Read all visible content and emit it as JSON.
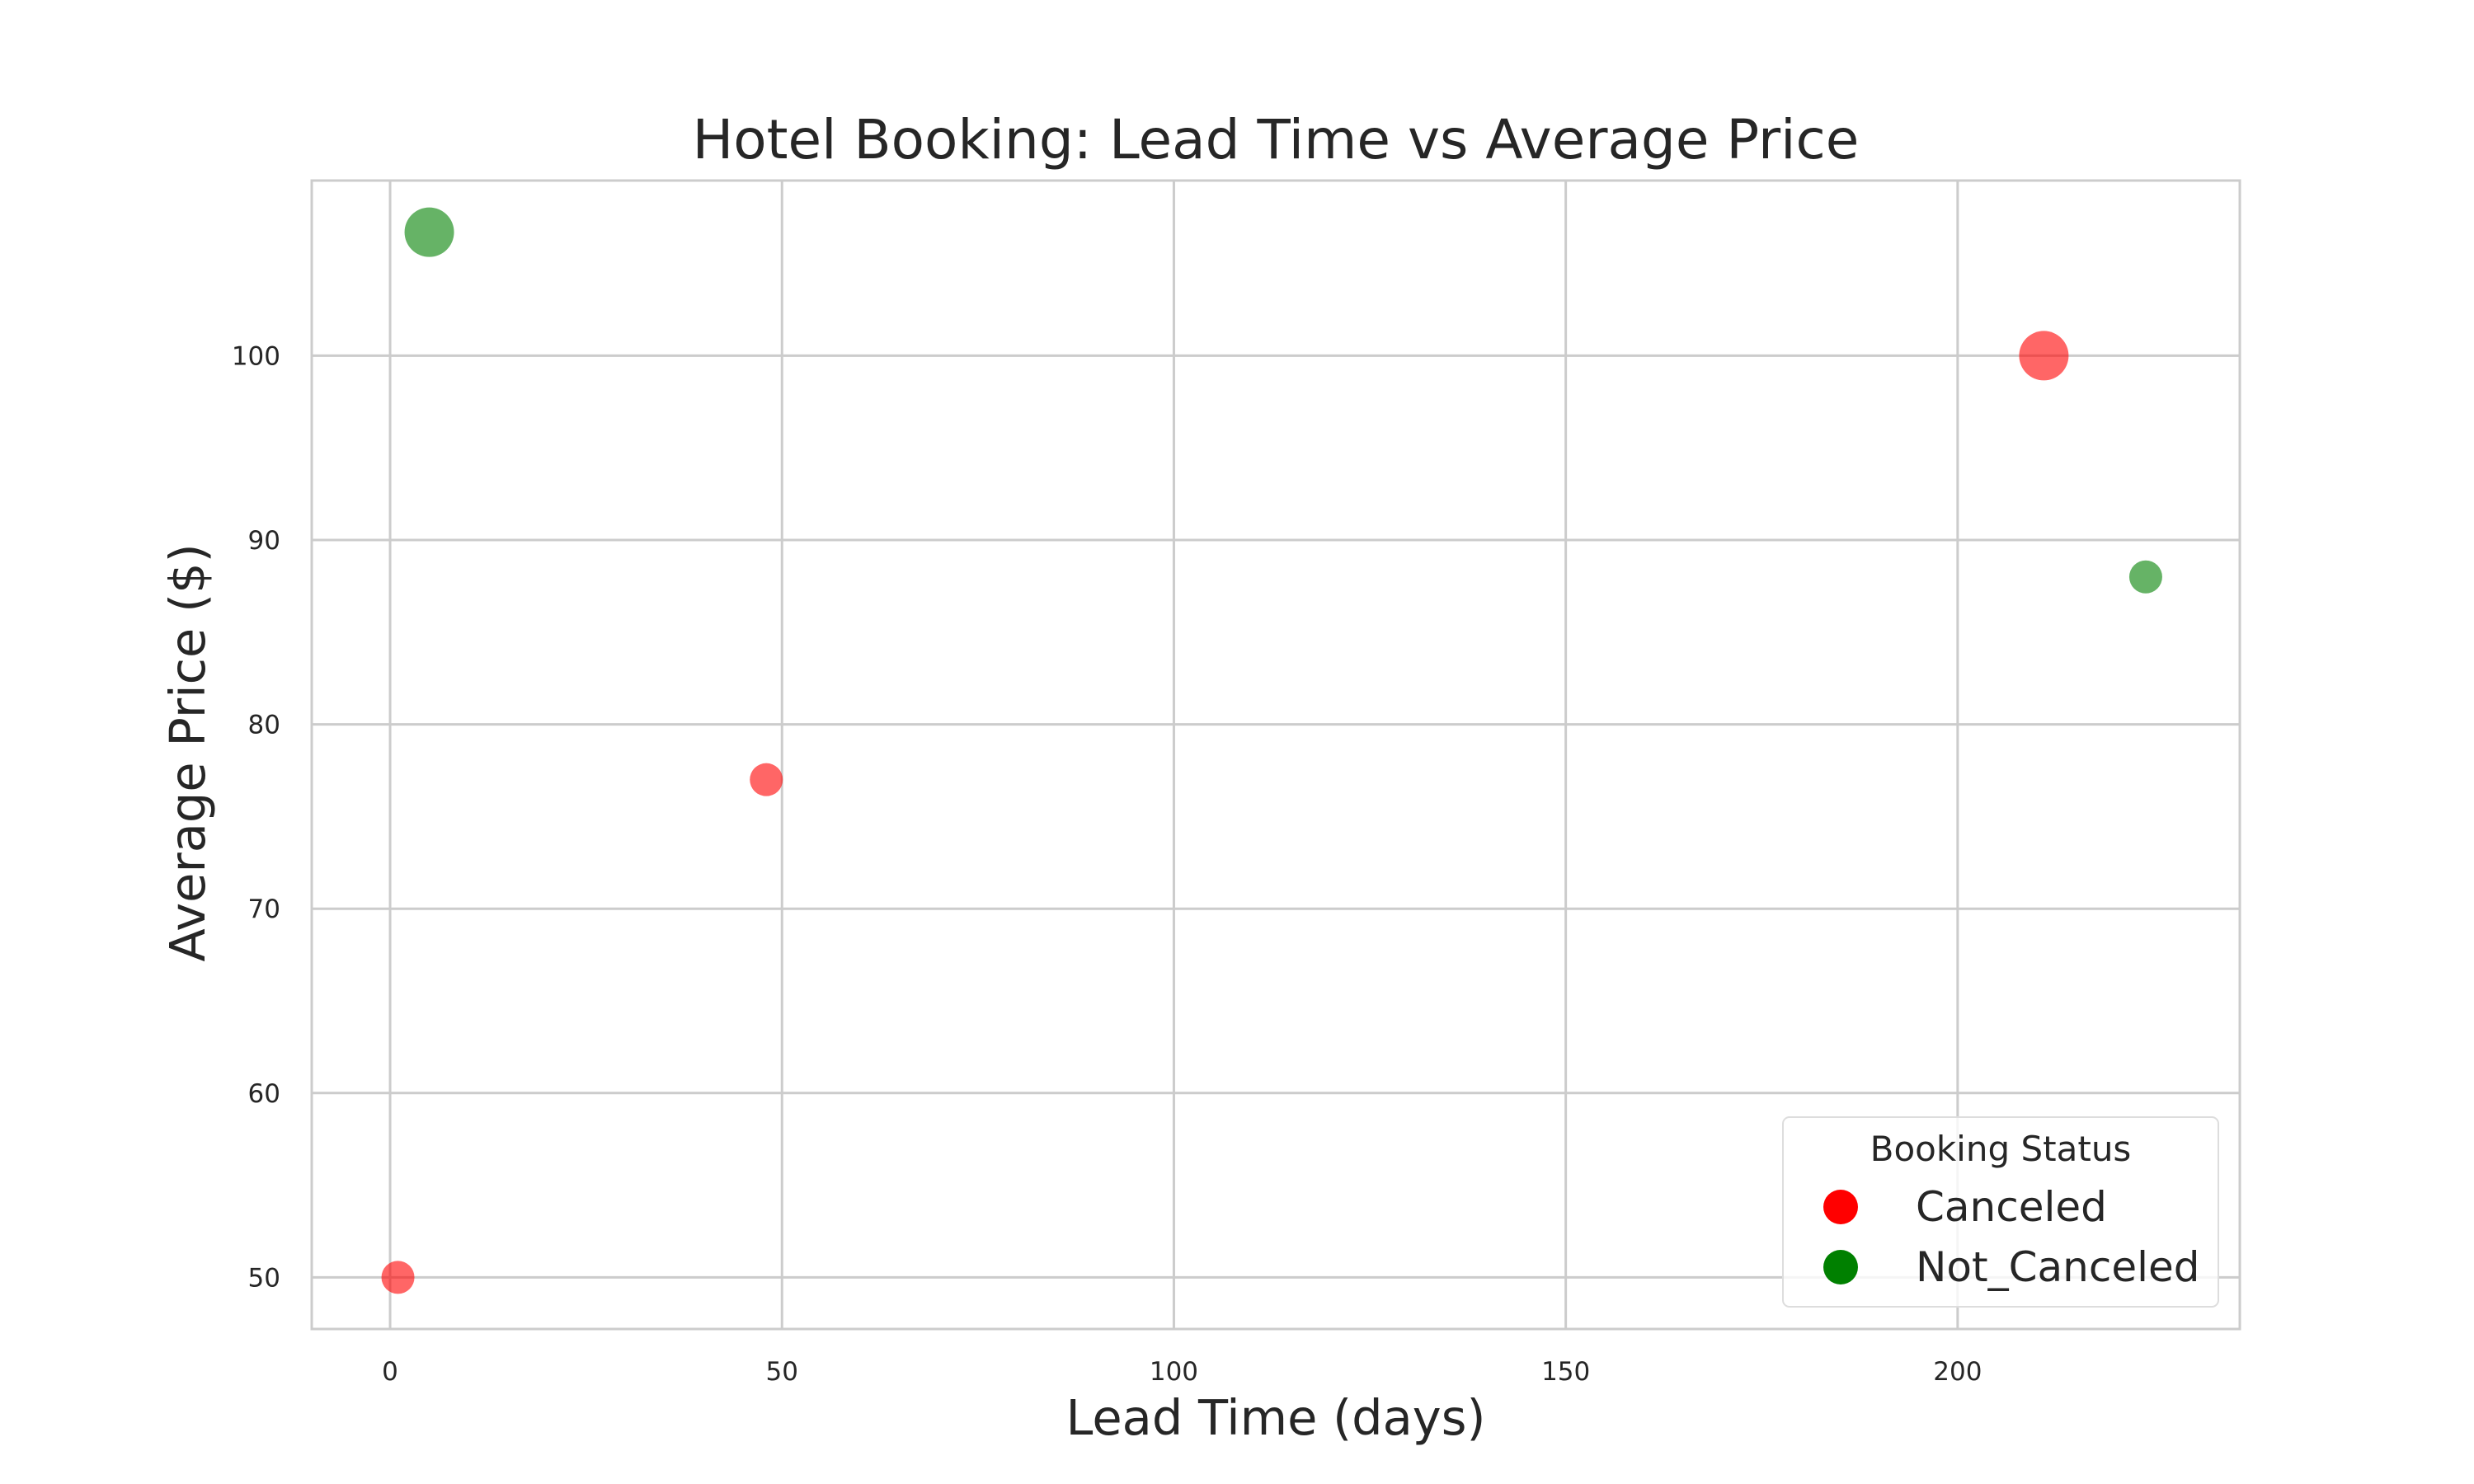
{
  "chart_data": {
    "type": "scatter",
    "title": "Hotel Booking: Lead Time vs Average Price",
    "xlabel": "Lead Time (days)",
    "ylabel": "Average Price ($)",
    "xlim": [
      -10,
      236
    ],
    "ylim": [
      47.2,
      109.5
    ],
    "x_ticks": [
      0,
      50,
      100,
      150,
      200
    ],
    "y_ticks": [
      50,
      60,
      70,
      80,
      90,
      100
    ],
    "grid": true,
    "legend": {
      "title": "Booking Status",
      "placement": "lower-right",
      "entries": [
        {
          "label": "Canceled",
          "color": "#ff0000"
        },
        {
          "label": "Not_Canceled",
          "color": "#008000"
        }
      ]
    },
    "series": [
      {
        "name": "Canceled",
        "color": "#ff0000",
        "points": [
          {
            "x": 1,
            "y": 50,
            "size": 1
          },
          {
            "x": 48,
            "y": 77,
            "size": 1
          },
          {
            "x": 211,
            "y": 100,
            "size": 2
          }
        ]
      },
      {
        "name": "Not_Canceled",
        "color": "#008000",
        "points": [
          {
            "x": 5,
            "y": 106.7,
            "size": 2
          },
          {
            "x": 224,
            "y": 88,
            "size": 1
          }
        ]
      }
    ]
  }
}
